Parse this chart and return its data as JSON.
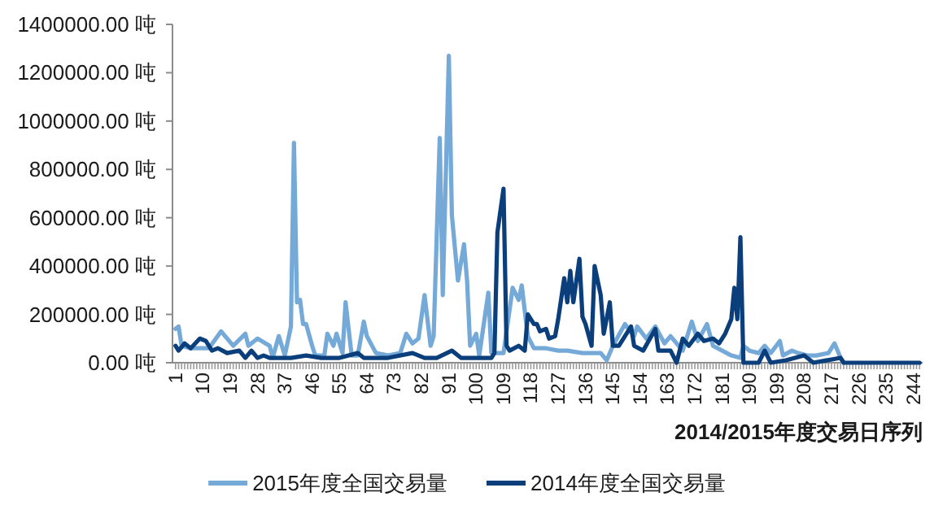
{
  "chart_data": {
    "type": "line",
    "xlabel": "2014/2015年度交易日序列",
    "legend": "bottom",
    "line_style": "solid",
    "xlim": [
      0,
      247
    ],
    "xticks": [
      1,
      {
        "value": 2,
        "label": null
      },
      {
        "value": 3,
        "label": null
      },
      {
        "value": 4,
        "label": null
      },
      {
        "value": 5,
        "label": null
      },
      {
        "value": 6,
        "label": null
      },
      {
        "value": 7,
        "label": null
      },
      {
        "value": 8,
        "label": null
      },
      {
        "value": 9,
        "label": null
      },
      10,
      {
        "value": 11,
        "label": null
      },
      {
        "value": 12,
        "label": null
      },
      {
        "value": 13,
        "label": null
      },
      {
        "value": 14,
        "label": null
      },
      {
        "value": 15,
        "label": null
      },
      {
        "value": 16,
        "label": null
      },
      {
        "value": 17,
        "label": null
      },
      {
        "value": 18,
        "label": null
      },
      19,
      {
        "value": 20,
        "label": null
      },
      {
        "value": 21,
        "label": null
      },
      {
        "value": 22,
        "label": null
      },
      {
        "value": 23,
        "label": null
      },
      {
        "value": 24,
        "label": null
      },
      {
        "value": 25,
        "label": null
      },
      {
        "value": 26,
        "label": null
      },
      {
        "value": 27,
        "label": null
      },
      28,
      {
        "value": 29,
        "label": null
      },
      {
        "value": 30,
        "label": null
      },
      {
        "value": 31,
        "label": null
      },
      {
        "value": 32,
        "label": null
      },
      {
        "value": 33,
        "label": null
      },
      {
        "value": 34,
        "label": null
      },
      {
        "value": 35,
        "label": null
      },
      {
        "value": 36,
        "label": null
      },
      37,
      {
        "value": 38,
        "label": null
      },
      {
        "value": 39,
        "label": null
      },
      {
        "value": 40,
        "label": null
      },
      {
        "value": 41,
        "label": null
      },
      {
        "value": 42,
        "label": null
      },
      {
        "value": 43,
        "label": null
      },
      {
        "value": 44,
        "label": null
      },
      {
        "value": 45,
        "label": null
      },
      46,
      {
        "value": 47,
        "label": null
      },
      {
        "value": 48,
        "label": null
      },
      {
        "value": 49,
        "label": null
      },
      {
        "value": 50,
        "label": null
      },
      {
        "value": 51,
        "label": null
      },
      {
        "value": 52,
        "label": null
      },
      {
        "value": 53,
        "label": null
      },
      {
        "value": 54,
        "label": null
      },
      55,
      {
        "value": 56,
        "label": null
      },
      {
        "value": 57,
        "label": null
      },
      {
        "value": 58,
        "label": null
      },
      {
        "value": 59,
        "label": null
      },
      {
        "value": 60,
        "label": null
      },
      {
        "value": 61,
        "label": null
      },
      {
        "value": 62,
        "label": null
      },
      {
        "value": 63,
        "label": null
      },
      64,
      {
        "value": 65,
        "label": null
      },
      {
        "value": 66,
        "label": null
      },
      {
        "value": 67,
        "label": null
      },
      {
        "value": 68,
        "label": null
      },
      {
        "value": 69,
        "label": null
      },
      {
        "value": 70,
        "label": null
      },
      {
        "value": 71,
        "label": null
      },
      {
        "value": 72,
        "label": null
      },
      73,
      {
        "value": 74,
        "label": null
      },
      {
        "value": 75,
        "label": null
      },
      {
        "value": 76,
        "label": null
      },
      {
        "value": 77,
        "label": null
      },
      {
        "value": 78,
        "label": null
      },
      {
        "value": 79,
        "label": null
      },
      {
        "value": 80,
        "label": null
      },
      {
        "value": 81,
        "label": null
      },
      82,
      {
        "value": 83,
        "label": null
      },
      {
        "value": 84,
        "label": null
      },
      {
        "value": 85,
        "label": null
      },
      {
        "value": 86,
        "label": null
      },
      {
        "value": 87,
        "label": null
      },
      {
        "value": 88,
        "label": null
      },
      {
        "value": 89,
        "label": null
      },
      {
        "value": 90,
        "label": null
      },
      91,
      {
        "value": 92,
        "label": null
      },
      {
        "value": 93,
        "label": null
      },
      {
        "value": 94,
        "label": null
      },
      {
        "value": 95,
        "label": null
      },
      {
        "value": 96,
        "label": null
      },
      {
        "value": 97,
        "label": null
      },
      {
        "value": 98,
        "label": null
      },
      {
        "value": 99,
        "label": null
      },
      100,
      {
        "value": 101,
        "label": null
      },
      {
        "value": 102,
        "label": null
      },
      {
        "value": 103,
        "label": null
      },
      {
        "value": 104,
        "label": null
      },
      {
        "value": 105,
        "label": null
      },
      {
        "value": 106,
        "label": null
      },
      {
        "value": 107,
        "label": null
      },
      {
        "value": 108,
        "label": null
      },
      109,
      {
        "value": 110,
        "label": null
      },
      {
        "value": 111,
        "label": null
      },
      {
        "value": 112,
        "label": null
      },
      {
        "value": 113,
        "label": null
      },
      {
        "value": 114,
        "label": null
      },
      {
        "value": 115,
        "label": null
      },
      {
        "value": 116,
        "label": null
      },
      {
        "value": 117,
        "label": null
      },
      118,
      {
        "value": 119,
        "label": null
      },
      {
        "value": 120,
        "label": null
      },
      {
        "value": 121,
        "label": null
      },
      {
        "value": 122,
        "label": null
      },
      {
        "value": 123,
        "label": null
      },
      {
        "value": 124,
        "label": null
      },
      {
        "value": 125,
        "label": null
      },
      {
        "value": 126,
        "label": null
      },
      127,
      {
        "value": 128,
        "label": null
      },
      {
        "value": 129,
        "label": null
      },
      {
        "value": 130,
        "label": null
      },
      {
        "value": 131,
        "label": null
      },
      {
        "value": 132,
        "label": null
      },
      {
        "value": 133,
        "label": null
      },
      {
        "value": 134,
        "label": null
      },
      {
        "value": 135,
        "label": null
      },
      136,
      {
        "value": 137,
        "label": null
      },
      {
        "value": 138,
        "label": null
      },
      {
        "value": 139,
        "label": null
      },
      {
        "value": 140,
        "label": null
      },
      {
        "value": 141,
        "label": null
      },
      {
        "value": 142,
        "label": null
      },
      {
        "value": 143,
        "label": null
      },
      {
        "value": 144,
        "label": null
      },
      145,
      {
        "value": 146,
        "label": null
      },
      {
        "value": 147,
        "label": null
      },
      {
        "value": 148,
        "label": null
      },
      {
        "value": 149,
        "label": null
      },
      {
        "value": 150,
        "label": null
      },
      {
        "value": 151,
        "label": null
      },
      {
        "value": 152,
        "label": null
      },
      {
        "value": 153,
        "label": null
      },
      154,
      {
        "value": 155,
        "label": null
      },
      {
        "value": 156,
        "label": null
      },
      {
        "value": 157,
        "label": null
      },
      {
        "value": 158,
        "label": null
      },
      {
        "value": 159,
        "label": null
      },
      {
        "value": 160,
        "label": null
      },
      {
        "value": 161,
        "label": null
      },
      {
        "value": 162,
        "label": null
      },
      163,
      {
        "value": 164,
        "label": null
      },
      {
        "value": 165,
        "label": null
      },
      {
        "value": 166,
        "label": null
      },
      {
        "value": 167,
        "label": null
      },
      {
        "value": 168,
        "label": null
      },
      {
        "value": 169,
        "label": null
      },
      {
        "value": 170,
        "label": null
      },
      {
        "value": 171,
        "label": null
      },
      172,
      {
        "value": 173,
        "label": null
      },
      {
        "value": 174,
        "label": null
      },
      {
        "value": 175,
        "label": null
      },
      {
        "value": 176,
        "label": null
      },
      {
        "value": 177,
        "label": null
      },
      {
        "value": 178,
        "label": null
      },
      {
        "value": 179,
        "label": null
      },
      {
        "value": 180,
        "label": null
      },
      181,
      {
        "value": 182,
        "label": null
      },
      {
        "value": 183,
        "label": null
      },
      {
        "value": 184,
        "label": null
      },
      {
        "value": 185,
        "label": null
      },
      {
        "value": 186,
        "label": null
      },
      {
        "value": 187,
        "label": null
      },
      {
        "value": 188,
        "label": null
      },
      {
        "value": 189,
        "label": null
      },
      190,
      {
        "value": 191,
        "label": null
      },
      {
        "value": 192,
        "label": null
      },
      {
        "value": 193,
        "label": null
      },
      {
        "value": 194,
        "label": null
      },
      {
        "value": 195,
        "label": null
      },
      {
        "value": 196,
        "label": null
      },
      {
        "value": 197,
        "label": null
      },
      {
        "value": 198,
        "label": null
      },
      199,
      {
        "value": 200,
        "label": null
      },
      {
        "value": 201,
        "label": null
      },
      {
        "value": 202,
        "label": null
      },
      {
        "value": 203,
        "label": null
      },
      {
        "value": 204,
        "label": null
      },
      {
        "value": 205,
        "label": null
      },
      {
        "value": 206,
        "label": null
      },
      {
        "value": 207,
        "label": null
      },
      208,
      {
        "value": 209,
        "label": null
      },
      {
        "value": 210,
        "label": null
      },
      {
        "value": 211,
        "label": null
      },
      {
        "value": 212,
        "label": null
      },
      {
        "value": 213,
        "label": null
      },
      {
        "value": 214,
        "label": null
      },
      {
        "value": 215,
        "label": null
      },
      {
        "value": 216,
        "label": null
      },
      217,
      {
        "value": 218,
        "label": null
      },
      {
        "value": 219,
        "label": null
      },
      {
        "value": 220,
        "label": null
      },
      {
        "value": 221,
        "label": null
      },
      {
        "value": 222,
        "label": null
      },
      {
        "value": 223,
        "label": null
      },
      {
        "value": 224,
        "label": null
      },
      {
        "value": 225,
        "label": null
      },
      226,
      {
        "value": 227,
        "label": null
      },
      {
        "value": 228,
        "label": null
      },
      {
        "value": 229,
        "label": null
      },
      {
        "value": 230,
        "label": null
      },
      {
        "value": 231,
        "label": null
      },
      {
        "value": 232,
        "label": null
      },
      {
        "value": 233,
        "label": null
      },
      {
        "value": 234,
        "label": null
      },
      235,
      {
        "value": 236,
        "label": null
      },
      {
        "value": 237,
        "label": null
      },
      {
        "value": 238,
        "label": null
      },
      {
        "value": 239,
        "label": null
      },
      {
        "value": 240,
        "label": null
      },
      {
        "value": 241,
        "label": null
      },
      {
        "value": 242,
        "label": null
      },
      {
        "value": 243,
        "label": null
      },
      244,
      {
        "value": 245,
        "label": null
      },
      {
        "value": 246,
        "label": null
      }
    ],
    "ylim": [
      0,
      1400000
    ],
    "yticks": [
      {
        "value": 0,
        "label": "0.00 吨"
      },
      {
        "value": 200000,
        "label": "200000.00 吨"
      },
      {
        "value": 400000,
        "label": "400000.00 吨"
      },
      {
        "value": 600000,
        "label": "600000.00 吨"
      },
      {
        "value": 800000,
        "label": "800000.00 吨"
      },
      {
        "value": 1000000,
        "label": "1000000.00 吨"
      },
      {
        "value": 1200000,
        "label": "1200000.00 吨"
      },
      {
        "value": 1400000,
        "label": "1400000.00 吨"
      }
    ],
    "series": [
      {
        "name": "2015年度全国交易量",
        "color": "#74a9d8",
        "x": [
          1,
          2,
          3,
          6,
          12,
          16,
          20,
          24,
          25,
          28,
          32,
          33,
          35,
          37,
          39,
          40,
          41,
          42,
          43,
          44,
          46,
          47,
          50,
          51,
          53,
          54,
          56,
          57,
          59,
          61,
          63,
          64,
          67,
          71,
          75,
          77,
          79,
          81,
          83,
          85,
          86,
          88,
          89,
          91,
          92,
          94,
          96,
          97,
          98,
          100,
          101,
          104,
          105,
          109,
          112,
          114,
          115,
          117,
          119,
          123,
          127,
          130,
          135,
          141,
          143,
          145,
          149,
          152,
          153,
          156,
          159,
          162,
          164,
          168,
          171,
          173,
          176,
          178,
          181,
          184,
          187,
          188,
          190,
          193,
          195,
          197,
          200,
          201,
          204,
          206,
          209,
          212,
          216,
          218,
          220,
          221
        ],
        "values": [
          140000,
          150000,
          70000,
          60000,
          60000,
          130000,
          70000,
          120000,
          70000,
          100000,
          70000,
          20000,
          110000,
          30000,
          150000,
          910000,
          250000,
          260000,
          160000,
          160000,
          70000,
          30000,
          30000,
          120000,
          70000,
          120000,
          40000,
          250000,
          30000,
          30000,
          170000,
          110000,
          40000,
          30000,
          40000,
          120000,
          80000,
          100000,
          280000,
          70000,
          110000,
          930000,
          280000,
          1270000,
          610000,
          340000,
          490000,
          340000,
          70000,
          120000,
          30000,
          290000,
          40000,
          40000,
          310000,
          260000,
          320000,
          110000,
          60000,
          60000,
          50000,
          50000,
          40000,
          40000,
          10000,
          70000,
          160000,
          110000,
          150000,
          100000,
          150000,
          80000,
          110000,
          50000,
          170000,
          90000,
          160000,
          70000,
          50000,
          30000,
          20000,
          70000,
          50000,
          40000,
          70000,
          40000,
          90000,
          30000,
          50000,
          40000,
          30000,
          30000,
          40000,
          80000,
          20000,
          0
        ]
      },
      {
        "name": "2014年度全国交易量",
        "color": "#0b3f7c",
        "x": [
          1,
          2,
          4,
          6,
          9,
          11,
          13,
          15,
          18,
          22,
          24,
          26,
          28,
          30,
          32,
          39,
          44,
          49,
          55,
          61,
          63,
          71,
          79,
          83,
          87,
          92,
          95,
          100,
          105,
          106,
          107,
          109,
          110,
          111,
          114,
          116,
          117,
          119,
          120,
          121,
          123,
          124,
          126,
          127,
          129,
          130,
          131,
          132,
          134,
          135,
          136,
          138,
          139,
          141,
          142,
          144,
          145,
          147,
          151,
          152,
          155,
          159,
          160,
          164,
          166,
          168,
          170,
          173,
          175,
          178,
          180,
          182,
          184,
          185,
          186,
          187,
          188,
          193,
          195,
          197,
          202,
          208,
          211,
          220,
          221,
          246
        ],
        "values": [
          70000,
          50000,
          80000,
          60000,
          100000,
          90000,
          50000,
          60000,
          40000,
          50000,
          20000,
          50000,
          20000,
          30000,
          20000,
          20000,
          30000,
          20000,
          20000,
          40000,
          20000,
          20000,
          40000,
          20000,
          20000,
          50000,
          20000,
          20000,
          20000,
          40000,
          540000,
          720000,
          70000,
          50000,
          70000,
          50000,
          200000,
          160000,
          160000,
          130000,
          140000,
          100000,
          110000,
          180000,
          350000,
          250000,
          380000,
          250000,
          430000,
          190000,
          160000,
          70000,
          400000,
          280000,
          120000,
          250000,
          70000,
          70000,
          150000,
          70000,
          50000,
          140000,
          50000,
          50000,
          0,
          100000,
          70000,
          120000,
          90000,
          100000,
          80000,
          120000,
          180000,
          310000,
          180000,
          520000,
          0,
          0,
          50000,
          0,
          10000,
          30000,
          0,
          20000,
          0,
          0
        ]
      }
    ]
  }
}
